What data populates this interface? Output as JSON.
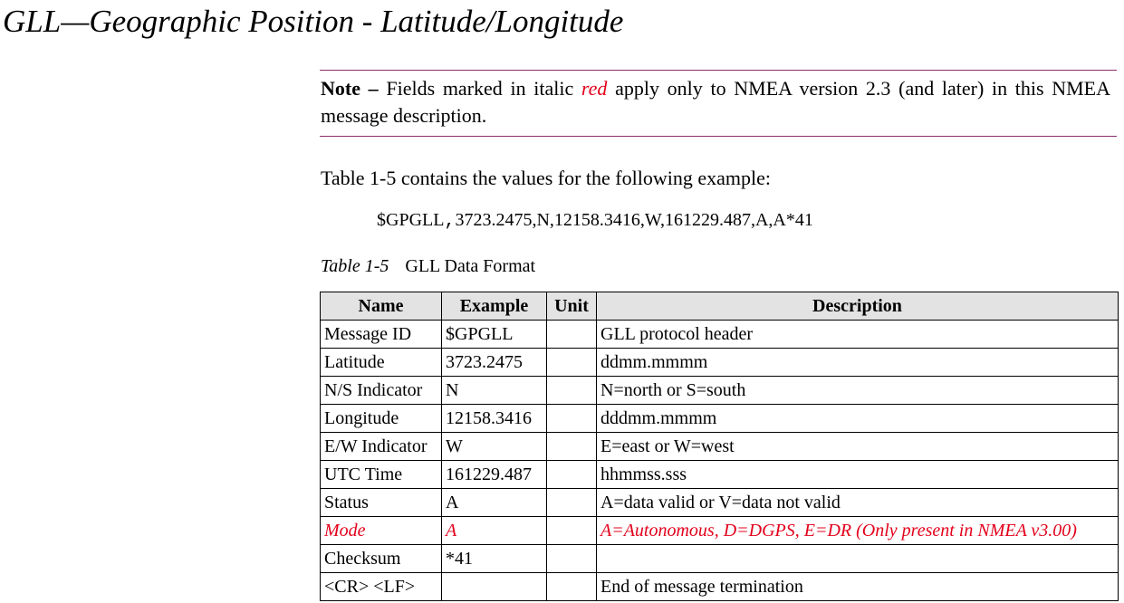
{
  "title": "GLL—Geographic Position - Latitude/Longitude",
  "note": {
    "label": "Note –",
    "text_before": " Fields marked in italic ",
    "highlight": "red",
    "text_after": " apply only to NMEA version 2.3 (and later) in this NMEA message description."
  },
  "intro": "Table 1-5 contains the values for the following example:",
  "example": {
    "prefix": "$GPGLL",
    "comma": ",",
    "rest": "3723.2475,N,12158.3416,W,161229.487,A,A*41"
  },
  "caption": {
    "number": "Table 1-5",
    "title": "GLL Data Format"
  },
  "table": {
    "headers": [
      "Name",
      "Example",
      "Unit",
      "Description"
    ],
    "rows": [
      [
        "Message ID",
        "$GPGLL",
        "",
        "GLL protocol header"
      ],
      [
        "Latitude",
        "3723.2475",
        "",
        "ddmm.mmmm"
      ],
      [
        "N/S Indicator",
        "N",
        "",
        "N=north or S=south"
      ],
      [
        "Longitude",
        "12158.3416",
        "",
        "dddmm.mmmm"
      ],
      [
        "E/W Indicator",
        "W",
        "",
        "E=east or W=west"
      ],
      [
        "UTC Time",
        "161229.487",
        "",
        "hhmmss.sss"
      ],
      [
        "Status",
        "A",
        "",
        "A=data valid or V=data not valid"
      ],
      [
        "Mode",
        "A",
        "",
        "A=Autonomous, D=DGPS, E=DR (Only present in NMEA v3.00)"
      ],
      [
        "Checksum",
        "*41",
        "",
        ""
      ],
      [
        "<CR> <LF>",
        "",
        "",
        "End of message termination"
      ]
    ]
  },
  "colors": {
    "highlight_red": "#e3001b",
    "rule": "#8c2d72",
    "header_bg": "#e3e3e3"
  }
}
